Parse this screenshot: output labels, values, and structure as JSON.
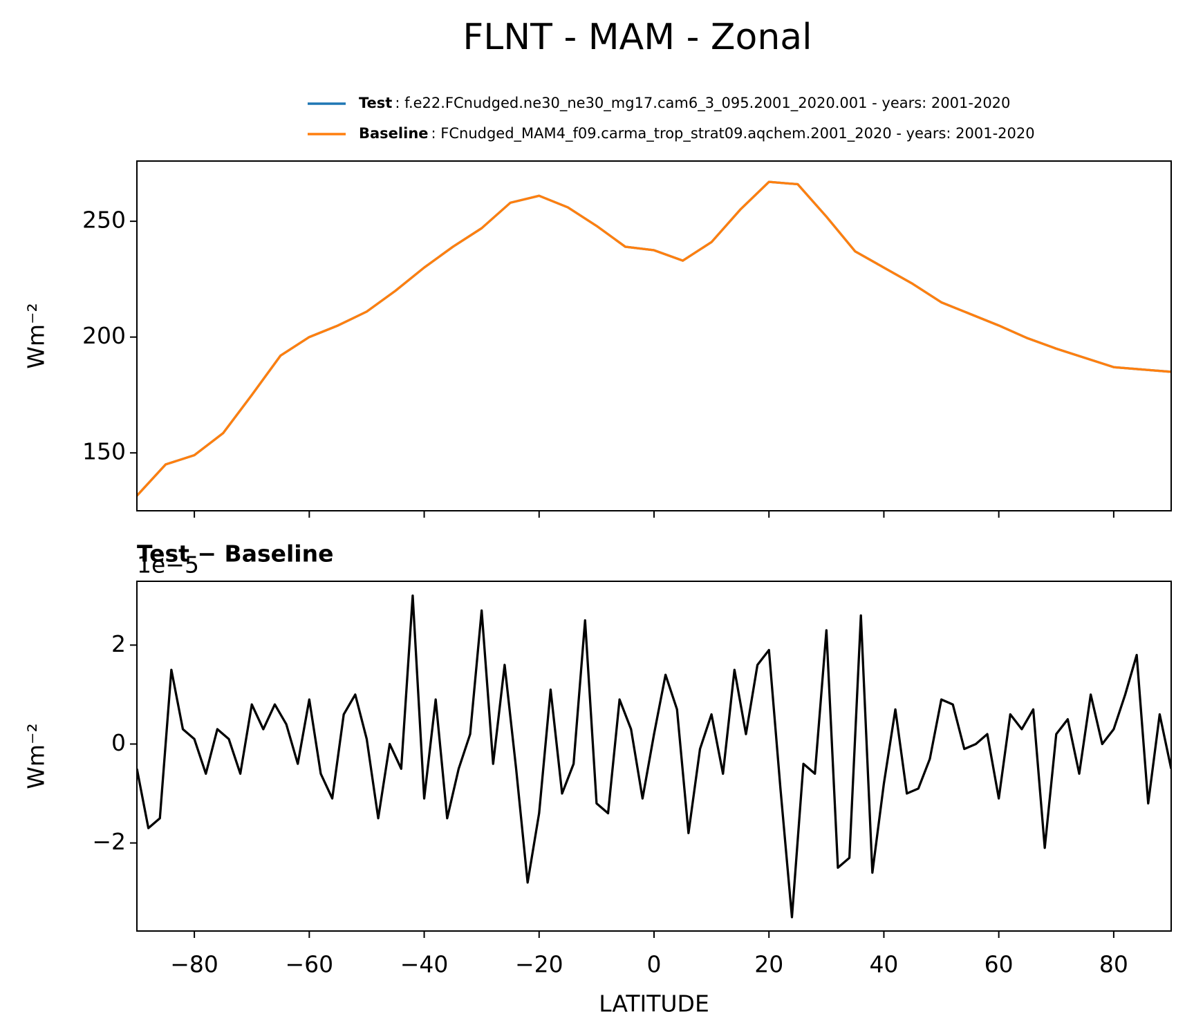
{
  "suptitle": "FLNT - MAM - Zonal",
  "chart_data": [
    {
      "type": "line",
      "ylabel": "Wm⁻²",
      "legend": "upper right",
      "x": [
        -90,
        -85,
        -80,
        -75,
        -70,
        -65,
        -60,
        -55,
        -50,
        -45,
        -40,
        -35,
        -30,
        -25,
        -20,
        -15,
        -10,
        -5,
        0,
        5,
        10,
        15,
        20,
        25,
        30,
        35,
        40,
        45,
        50,
        55,
        60,
        65,
        70,
        75,
        80,
        85,
        90
      ],
      "series": [
        {
          "name": "Test",
          "description": ": f.e22.FCnudged.ne30_ne30_mg17.cam6_3_095.2001_2020.001 - years: 2001-2020",
          "color": "#1f77b4",
          "values": [
            131.5,
            145,
            149,
            158.5,
            175,
            192,
            200,
            205,
            211,
            220,
            230,
            239,
            247,
            258,
            261,
            256,
            248,
            239,
            237.5,
            233,
            241,
            255,
            267,
            266,
            252,
            237,
            230,
            223,
            215,
            210,
            205,
            199.5,
            195,
            191,
            187,
            186,
            185
          ]
        },
        {
          "name": "Baseline",
          "description": ": FCnudged_MAM4_f09.carma_trop_strat09.aqchem.2001_2020 - years: 2001-2020",
          "color": "#ff7f0e",
          "values": [
            131.5,
            145,
            149,
            158.5,
            175,
            192,
            200,
            205,
            211,
            220,
            230,
            239,
            247,
            258,
            261,
            256,
            248,
            239,
            237.5,
            233,
            241,
            255,
            267,
            266,
            252,
            237,
            230,
            223,
            215,
            210,
            205,
            199.5,
            195,
            191,
            187,
            186,
            185
          ]
        }
      ],
      "xlim": [
        -90,
        90
      ],
      "xticks": [
        -80,
        -60,
        -40,
        -20,
        0,
        20,
        40,
        60,
        80
      ],
      "ylim": [
        125,
        276
      ],
      "yticks": [
        150,
        200,
        250
      ]
    },
    {
      "type": "line",
      "title": "Test − Baseline",
      "offset_text": "1e−5",
      "ylabel": "Wm⁻²",
      "xlabel": "LATITUDE",
      "x": [
        -90,
        -88,
        -86,
        -84,
        -82,
        -80,
        -78,
        -76,
        -74,
        -72,
        -70,
        -68,
        -66,
        -64,
        -62,
        -60,
        -58,
        -56,
        -54,
        -52,
        -50,
        -48,
        -46,
        -44,
        -42,
        -40,
        -38,
        -36,
        -34,
        -32,
        -30,
        -28,
        -26,
        -24,
        -22,
        -20,
        -18,
        -16,
        -14,
        -12,
        -10,
        -8,
        -6,
        -4,
        -2,
        0,
        2,
        4,
        6,
        8,
        10,
        12,
        14,
        16,
        18,
        20,
        22,
        24,
        26,
        28,
        30,
        32,
        34,
        36,
        38,
        40,
        42,
        44,
        46,
        48,
        50,
        52,
        54,
        56,
        58,
        60,
        62,
        64,
        66,
        68,
        70,
        72,
        74,
        76,
        78,
        80,
        82,
        84,
        86,
        88,
        90
      ],
      "series": [
        {
          "color": "#000000",
          "values": [
            -0.5,
            -1.7,
            -1.5,
            1.5,
            0.3,
            0.1,
            -0.6,
            0.3,
            0.1,
            -0.6,
            0.8,
            0.3,
            0.8,
            0.4,
            -0.4,
            0.9,
            -0.6,
            -1.1,
            0.6,
            1.0,
            0.1,
            -1.5,
            0.0,
            -0.5,
            3.0,
            -1.1,
            0.9,
            -1.5,
            -0.5,
            0.2,
            2.7,
            -0.4,
            1.6,
            -0.5,
            -2.8,
            -1.4,
            1.1,
            -1.0,
            -0.4,
            2.5,
            -1.2,
            -1.4,
            0.9,
            0.3,
            -1.1,
            0.2,
            1.4,
            0.7,
            -1.8,
            -0.1,
            0.6,
            -0.6,
            1.5,
            0.2,
            1.6,
            1.9,
            -0.9,
            -3.5,
            -0.4,
            -0.6,
            2.3,
            -2.5,
            -2.3,
            2.6,
            -2.6,
            -0.8,
            0.7,
            -1.0,
            -0.9,
            -0.3,
            0.9,
            0.8,
            -0.1,
            0.0,
            0.2,
            -1.1,
            0.6,
            0.3,
            0.7,
            -2.1,
            0.2,
            0.5,
            -0.6,
            1.0,
            0.0,
            0.3,
            1.0,
            1.8,
            -1.2,
            0.6,
            -0.5
          ]
        }
      ],
      "xlim": [
        -90,
        90
      ],
      "xticks": [
        -80,
        -60,
        -40,
        -20,
        0,
        20,
        40,
        60,
        80
      ],
      "ylim": [
        -3.78,
        3.29
      ],
      "yticks": [
        {
          "value": -2,
          "label": "−2"
        },
        0,
        2
      ]
    }
  ]
}
